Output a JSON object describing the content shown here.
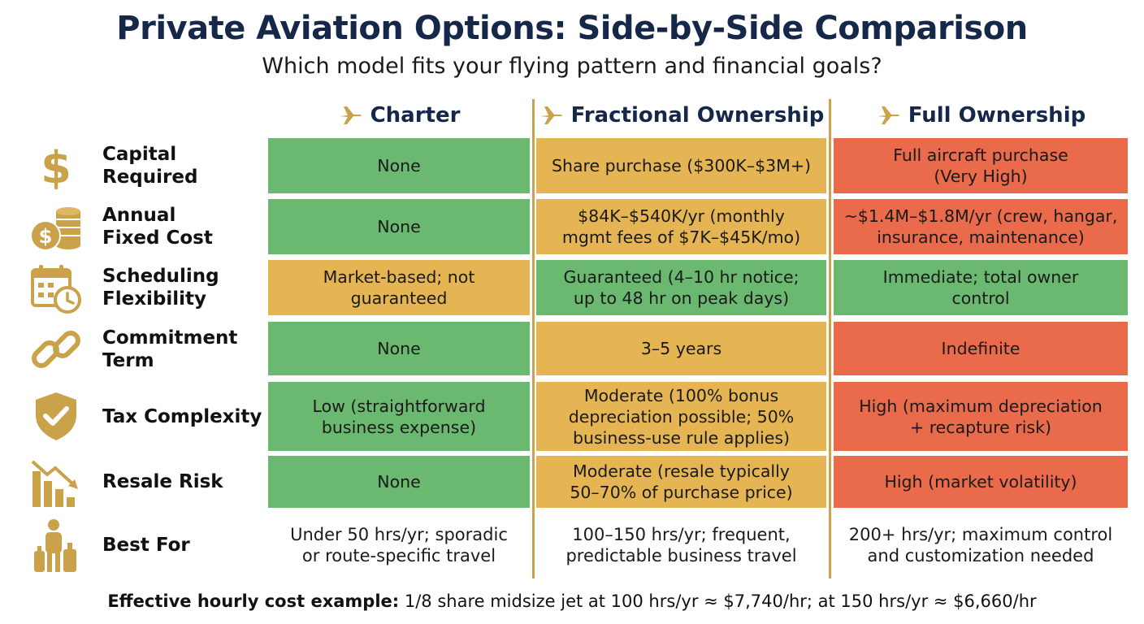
{
  "title": "Private Aviation Options: Side-by-Side Comparison",
  "subtitle": "Which model fits your flying pattern and financial goals?",
  "colors": {
    "green": "#6bb871",
    "amber": "#e6b553",
    "red": "#ea6b4c",
    "gold": "#c9a24a",
    "navy": "#16284a"
  },
  "columns": [
    {
      "label": "Charter",
      "icon": "airplane-icon"
    },
    {
      "label": "Fractional Ownership",
      "icon": "airplane-icon"
    },
    {
      "label": "Full Ownership",
      "icon": "airplane-icon"
    }
  ],
  "rows": [
    {
      "label_line1": "Capital",
      "label_line2": "Required",
      "icon": "dollar-icon",
      "cells": [
        {
          "line1": "None",
          "line2": "",
          "status": "green"
        },
        {
          "line1": "Share purchase ($300K–$3M+)",
          "line2": "",
          "status": "amber"
        },
        {
          "line1": "Full aircraft purchase",
          "line2": "(Very High)",
          "status": "red"
        }
      ]
    },
    {
      "label_line1": "Annual",
      "label_line2": "Fixed Cost",
      "icon": "coins-icon",
      "cells": [
        {
          "line1": "None",
          "line2": "",
          "status": "green"
        },
        {
          "line1": "$84K–$540K/yr (monthly",
          "line2": "mgmt fees of $7K–$45K/mo)",
          "status": "amber"
        },
        {
          "line1": "~$1.4M–$1.8M/yr (crew, hangar,",
          "line2": "insurance, maintenance)",
          "status": "red"
        }
      ]
    },
    {
      "label_line1": "Scheduling",
      "label_line2": "Flexibility",
      "icon": "calendar-clock-icon",
      "cells": [
        {
          "line1": "Market-based; not",
          "line2": "guaranteed",
          "status": "amber"
        },
        {
          "line1": "Guaranteed (4–10 hr notice;",
          "line2": "up to 48 hr on peak days)",
          "status": "green"
        },
        {
          "line1": "Immediate; total owner",
          "line2": "control",
          "status": "green"
        }
      ]
    },
    {
      "label_line1": "Commitment",
      "label_line2": "Term",
      "icon": "chain-link-icon",
      "cells": [
        {
          "line1": "None",
          "line2": "",
          "status": "green"
        },
        {
          "line1": "3–5 years",
          "line2": "",
          "status": "amber"
        },
        {
          "line1": "Indefinite",
          "line2": "",
          "status": "red"
        }
      ]
    },
    {
      "label_line1": "Tax Complexity",
      "label_line2": "",
      "icon": "shield-check-icon",
      "cells": [
        {
          "line1": "Low (straightforward",
          "line2": "business expense)",
          "line3": "",
          "status": "green"
        },
        {
          "line1": "Moderate (100% bonus",
          "line2": "depreciation possible; 50%",
          "line3": "business-use rule applies)",
          "status": "amber"
        },
        {
          "line1": "High (maximum depreciation",
          "line2": "+ recapture risk)",
          "line3": "",
          "status": "red"
        }
      ]
    },
    {
      "label_line1": "Resale Risk",
      "label_line2": "",
      "icon": "declining-chart-icon",
      "cells": [
        {
          "line1": "None",
          "line2": "",
          "status": "green"
        },
        {
          "line1": "Moderate (resale typically",
          "line2": "50–70% of purchase price)",
          "status": "amber"
        },
        {
          "line1": "High (market volatility)",
          "line2": "",
          "status": "red"
        }
      ]
    },
    {
      "label_line1": "Best For",
      "label_line2": "",
      "icon": "traveler-luggage-icon",
      "cells": [
        {
          "line1": "Under 50 hrs/yr; sporadic",
          "line2": "or route-specific travel",
          "status": "none"
        },
        {
          "line1": "100–150 hrs/yr; frequent,",
          "line2": "predictable business travel",
          "status": "none"
        },
        {
          "line1": "200+ hrs/yr; maximum control",
          "line2": "and customization needed",
          "status": "none"
        }
      ]
    }
  ],
  "footer": {
    "bold": "Effective hourly cost example:",
    "text": " 1/8 share midsize jet at 100 hrs/yr ≈ $7,740/hr; at 150 hrs/yr ≈ $6,660/hr"
  }
}
